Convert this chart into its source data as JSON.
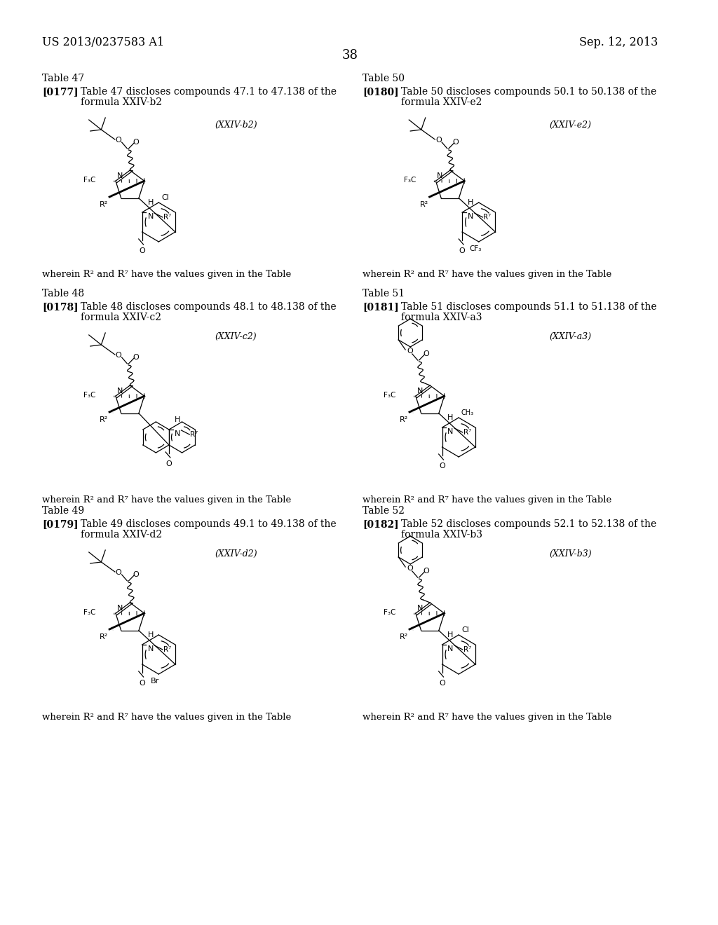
{
  "bg_color": "#ffffff",
  "header_left": "US 2013/0237583 A1",
  "header_right": "Sep. 12, 2013",
  "page_num": "38"
}
